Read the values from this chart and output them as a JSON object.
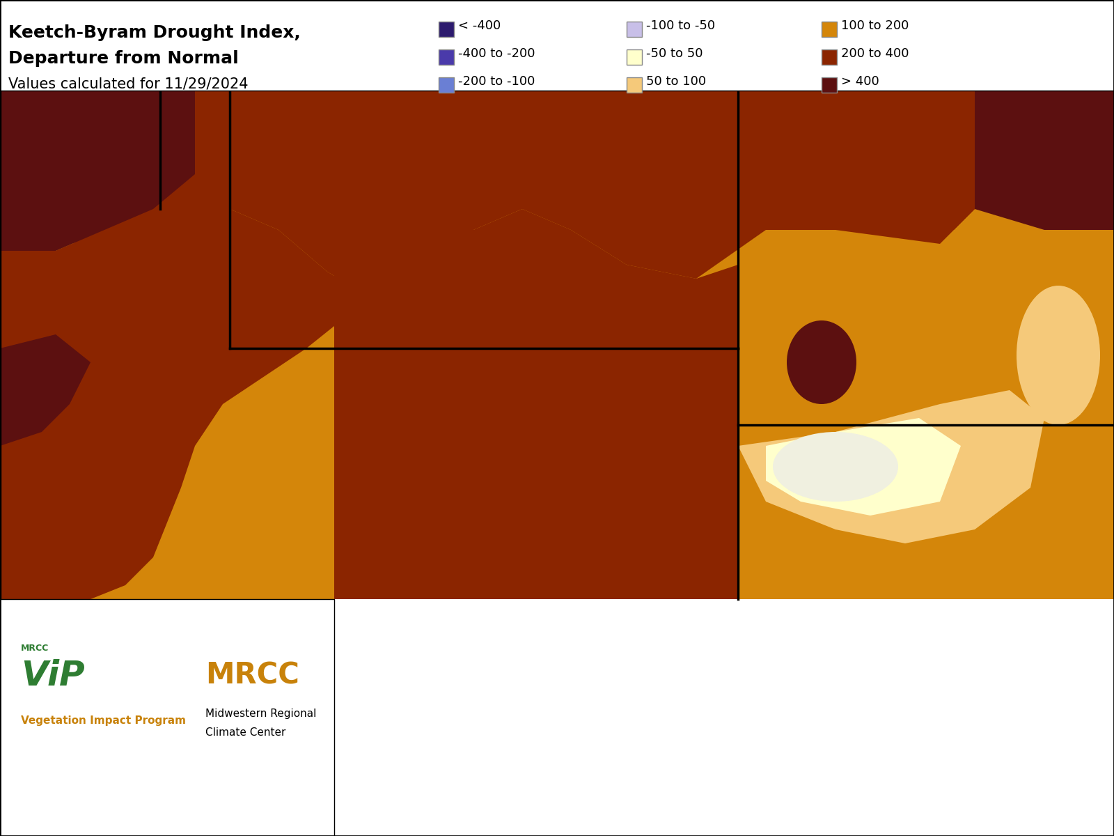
{
  "title_line1": "Keetch-Byram Drought Index,",
  "title_line2": "Departure from Normal",
  "title_line3": "Values calculated for 11/29/2024",
  "legend_entries": [
    {
      "label": "< -400",
      "color": "#2d1b6e"
    },
    {
      "label": "-400 to -200",
      "color": "#4a3aaa"
    },
    {
      "label": "-200 to -100",
      "color": "#6a7fd4"
    },
    {
      "label": "-100 to -50",
      "color": "#c8bfe8"
    },
    {
      "label": "-50 to 50",
      "color": "#ffffcc"
    },
    {
      "label": "50 to 100",
      "color": "#f5c97a"
    },
    {
      "label": "100 to 200",
      "color": "#d4860a"
    },
    {
      "label": "200 to 400",
      "color": "#8b2500"
    },
    {
      "label": "> 400",
      "color": "#5c1010"
    }
  ],
  "background_color": "#ffffff",
  "map_bg": "#d4860a",
  "border_color": "black",
  "county_line_color": "#5ba8c4",
  "state_line_color": "black",
  "fig_width": 16.0,
  "fig_height": 12.0,
  "logo_area_color": "#ffffff",
  "title_fontsize": 18,
  "subtitle_fontsize": 15,
  "legend_fontsize": 13,
  "legend_patch_size": 22
}
